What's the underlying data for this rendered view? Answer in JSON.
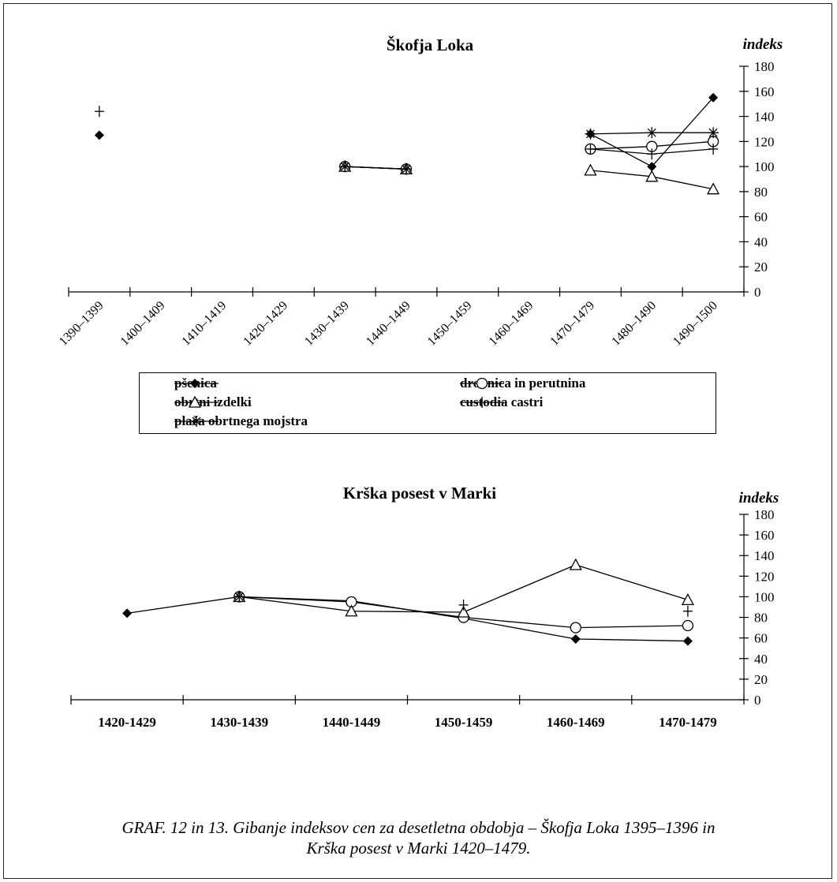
{
  "caption": {
    "line1": "GRAF. 12 in 13. Gibanje indeksov cen za desetletna obdobja – Škofja Loka 1395–1396 in",
    "line2": "Krška posest v Marki 1420–1479."
  },
  "legend": {
    "items": [
      {
        "name": "pšenica",
        "marker": "diamond"
      },
      {
        "name": "drobnica in perutnina",
        "marker": "circle"
      },
      {
        "name": "obrtni izdelki",
        "marker": "triangle"
      },
      {
        "name": "custodia castri",
        "marker": "plus"
      },
      {
        "name": "plača obrtnega mojstra",
        "marker": "star"
      }
    ]
  },
  "chart_data": [
    {
      "type": "line",
      "title": "Škofja Loka",
      "ylabel": "indeks",
      "ylim": [
        0,
        180
      ],
      "yticks": [
        0,
        20,
        40,
        60,
        80,
        100,
        120,
        140,
        160,
        180
      ],
      "categories": [
        "1390–1399",
        "1400–1409",
        "1410–1419",
        "1420–1429",
        "1430–1439",
        "1440–1449",
        "1450–1459",
        "1460–1469",
        "1470–1479",
        "1480–1490",
        "1490–1500"
      ],
      "legend_position": "below",
      "series": [
        {
          "name": "pšenica",
          "marker": "diamond",
          "values": [
            125,
            null,
            null,
            null,
            100,
            98,
            null,
            null,
            126,
            100,
            155
          ]
        },
        {
          "name": "drobnica in perutnina",
          "marker": "circle",
          "values": [
            null,
            null,
            null,
            null,
            100,
            98,
            null,
            null,
            114,
            116,
            120
          ]
        },
        {
          "name": "obrtni izdelki",
          "marker": "triangle",
          "values": [
            null,
            null,
            null,
            null,
            100,
            98,
            null,
            null,
            97,
            92,
            82
          ]
        },
        {
          "name": "custodia castri",
          "marker": "plus",
          "values": [
            144,
            null,
            null,
            null,
            100,
            98,
            null,
            null,
            114,
            110,
            114
          ]
        },
        {
          "name": "plača obrtnega mojstra",
          "marker": "star",
          "values": [
            null,
            null,
            null,
            null,
            100,
            98,
            null,
            null,
            126,
            127,
            127
          ]
        }
      ]
    },
    {
      "type": "line",
      "title": "Krška posest v Marki",
      "ylabel": "indeks",
      "ylim": [
        0,
        180
      ],
      "yticks": [
        0,
        20,
        40,
        60,
        80,
        100,
        120,
        140,
        160,
        180
      ],
      "categories": [
        "1420-1429",
        "1430-1439",
        "1440-1449",
        "1450-1459",
        "1460-1469",
        "1470-1479"
      ],
      "series": [
        {
          "name": "pšenica",
          "marker": "diamond",
          "values": [
            84,
            100,
            96,
            79,
            59,
            57
          ]
        },
        {
          "name": "drobnica in perutnina",
          "marker": "circle",
          "values": [
            null,
            100,
            95,
            80,
            70,
            72
          ]
        },
        {
          "name": "obrtni izdelki",
          "marker": "triangle",
          "values": [
            null,
            100,
            86,
            85,
            131,
            97
          ]
        },
        {
          "name": "custodia castri",
          "marker": "plus",
          "values": [
            null,
            100,
            null,
            92,
            null,
            86
          ]
        },
        {
          "name": "plača obrtnega mojstra",
          "marker": "star",
          "values": [
            null,
            100,
            null,
            null,
            null,
            null
          ]
        }
      ]
    }
  ]
}
